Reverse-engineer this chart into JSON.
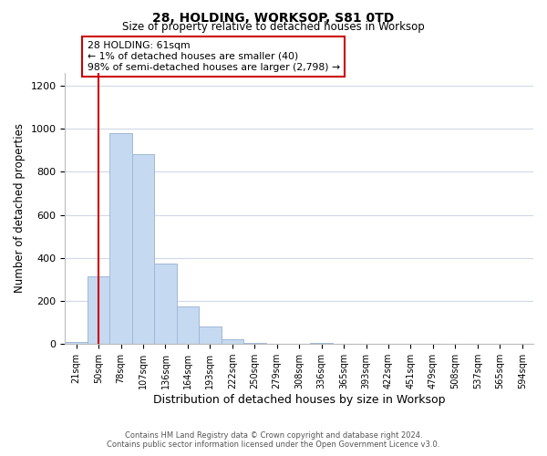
{
  "title": "28, HOLDING, WORKSOP, S81 0TD",
  "subtitle": "Size of property relative to detached houses in Worksop",
  "xlabel": "Distribution of detached houses by size in Worksop",
  "ylabel": "Number of detached properties",
  "bar_color": "#c5d9f0",
  "bar_edge_color": "#a0b8d8",
  "background_color": "#ffffff",
  "grid_color": "#d0d8e8",
  "tick_labels": [
    "21sqm",
    "50sqm",
    "78sqm",
    "107sqm",
    "136sqm",
    "164sqm",
    "193sqm",
    "222sqm",
    "250sqm",
    "279sqm",
    "308sqm",
    "336sqm",
    "365sqm",
    "393sqm",
    "422sqm",
    "451sqm",
    "479sqm",
    "508sqm",
    "537sqm",
    "565sqm",
    "594sqm"
  ],
  "bar_values": [
    10,
    315,
    980,
    880,
    375,
    175,
    80,
    22,
    5,
    0,
    0,
    5,
    0,
    0,
    0,
    0,
    0,
    0,
    0,
    0,
    0
  ],
  "ylim": [
    0,
    1260
  ],
  "yticks": [
    0,
    200,
    400,
    600,
    800,
    1000,
    1200
  ],
  "red_line_x": 1,
  "annotation_line1": "28 HOLDING: 61sqm",
  "annotation_line2": "← 1% of detached houses are smaller (40)",
  "annotation_line3": "98% of semi-detached houses are larger (2,798) →",
  "annotation_box_color": "#ffffff",
  "annotation_box_edge_color": "#cc0000",
  "footer_line1": "Contains HM Land Registry data © Crown copyright and database right 2024.",
  "footer_line2": "Contains public sector information licensed under the Open Government Licence v3.0."
}
